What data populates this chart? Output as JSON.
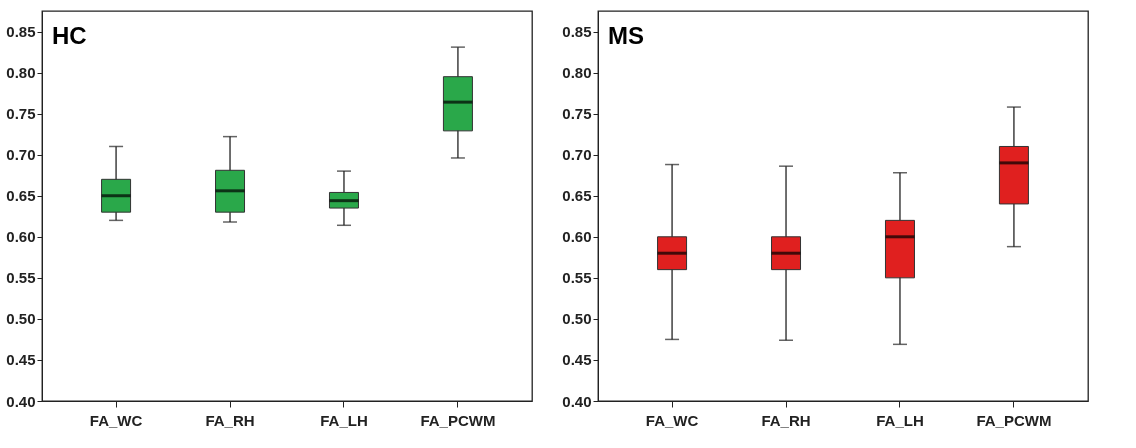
{
  "chart_data": [
    {
      "type": "box",
      "title": "HC",
      "categories": [
        "FA_WC",
        "FA_RH",
        "FA_LH",
        "FA_PCWM"
      ],
      "series": [
        {
          "color": "#2aa84a",
          "boxes": [
            {
              "low": 0.62,
              "q1": 0.63,
              "median": 0.65,
              "q3": 0.67,
              "high": 0.71
            },
            {
              "low": 0.618,
              "q1": 0.63,
              "median": 0.656,
              "q3": 0.681,
              "high": 0.722
            },
            {
              "low": 0.614,
              "q1": 0.635,
              "median": 0.644,
              "q3": 0.654,
              "high": 0.68
            },
            {
              "low": 0.696,
              "q1": 0.729,
              "median": 0.764,
              "q3": 0.795,
              "high": 0.831
            }
          ]
        }
      ],
      "ylim": [
        0.4,
        0.875
      ],
      "yticks": [
        {
          "value": 0.4,
          "label": "0.40"
        },
        {
          "value": 0.45,
          "label": "0.45"
        },
        {
          "value": 0.5,
          "label": "0.50"
        },
        {
          "value": 0.55,
          "label": "0.55"
        },
        {
          "value": 0.6,
          "label": "0.60"
        },
        {
          "value": 0.65,
          "label": "0.65"
        },
        {
          "value": 0.7,
          "label": "0.70"
        },
        {
          "value": 0.75,
          "label": "0.75"
        },
        {
          "value": 0.8,
          "label": "0.80"
        },
        {
          "value": 0.85,
          "label": "0.85"
        }
      ],
      "grid": false
    },
    {
      "type": "box",
      "title": "MS",
      "categories": [
        "FA_WC",
        "FA_RH",
        "FA_LH",
        "FA_PCWM"
      ],
      "series": [
        {
          "color": "#e0201f",
          "boxes": [
            {
              "low": 0.475,
              "q1": 0.56,
              "median": 0.58,
              "q3": 0.6,
              "high": 0.688
            },
            {
              "low": 0.474,
              "q1": 0.56,
              "median": 0.58,
              "q3": 0.6,
              "high": 0.686
            },
            {
              "low": 0.469,
              "q1": 0.55,
              "median": 0.6,
              "q3": 0.62,
              "high": 0.678
            },
            {
              "low": 0.588,
              "q1": 0.64,
              "median": 0.69,
              "q3": 0.71,
              "high": 0.758
            }
          ]
        }
      ],
      "ylim": [
        0.4,
        0.875
      ],
      "yticks": [
        {
          "value": 0.4,
          "label": "0.40"
        },
        {
          "value": 0.45,
          "label": "0.45"
        },
        {
          "value": 0.5,
          "label": "0.50"
        },
        {
          "value": 0.55,
          "label": "0.55"
        },
        {
          "value": 0.6,
          "label": "0.60"
        },
        {
          "value": 0.65,
          "label": "0.65"
        },
        {
          "value": 0.7,
          "label": "0.70"
        },
        {
          "value": 0.75,
          "label": "0.75"
        },
        {
          "value": 0.8,
          "label": "0.80"
        },
        {
          "value": 0.85,
          "label": "0.85"
        }
      ],
      "grid": false
    }
  ]
}
